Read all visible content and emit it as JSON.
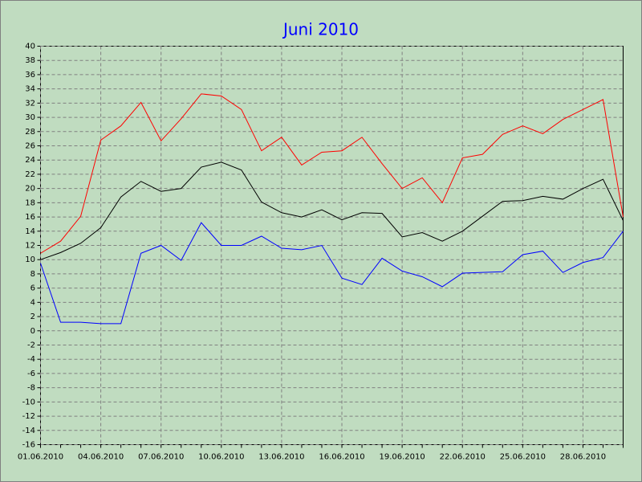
{
  "chart_data": {
    "type": "line",
    "title": "Juni 2010",
    "categories": [
      "01.06.2010",
      null,
      null,
      "04.06.2010",
      null,
      null,
      "07.06.2010",
      null,
      null,
      "10.06.2010",
      null,
      null,
      "13.06.2010",
      null,
      null,
      "16.06.2010",
      null,
      null,
      "19.06.2010",
      null,
      null,
      "22.06.2010",
      null,
      null,
      "25.06.2010",
      null,
      null,
      "28.06.2010",
      null,
      null
    ],
    "series": [
      {
        "color": "#ff0000",
        "values": [
          10.9,
          12.6,
          16.1,
          26.8,
          28.8,
          32.1,
          26.7,
          29.8,
          33.3,
          33.0,
          31.1,
          25.3,
          27.2,
          23.3,
          25.1,
          25.3,
          27.2,
          23.5,
          20.0,
          21.5,
          18.0,
          24.3,
          24.8,
          27.6,
          28.8,
          27.7,
          29.7,
          31.1,
          32.5,
          16.0
        ]
      },
      {
        "color": "#000000",
        "values": [
          10.0,
          11.0,
          12.3,
          14.5,
          18.8,
          21.0,
          19.6,
          20.0,
          23.0,
          23.7,
          22.6,
          18.1,
          16.6,
          16.0,
          17.0,
          15.6,
          16.6,
          16.5,
          13.2,
          13.8,
          12.6,
          14.0,
          16.1,
          18.2,
          18.3,
          18.9,
          18.5,
          20.0,
          21.3,
          15.5
        ]
      },
      {
        "color": "#0000ff",
        "values": [
          9.5,
          1.2,
          1.2,
          1.0,
          1.0,
          10.9,
          12.0,
          9.9,
          15.2,
          12.0,
          12.0,
          13.3,
          11.6,
          11.4,
          12.0,
          7.4,
          6.5,
          10.2,
          8.4,
          7.6,
          6.2,
          8.1,
          8.2,
          8.3,
          10.7,
          11.2,
          8.2,
          9.6,
          10.3,
          14.0
        ]
      }
    ],
    "ylim": [
      -16,
      40
    ],
    "yticks": [
      40,
      38,
      36,
      34,
      32,
      30,
      28,
      26,
      24,
      22,
      20,
      18,
      16,
      14,
      12,
      10,
      8,
      6,
      4,
      2,
      0,
      -2,
      -4,
      -6,
      -8,
      -10,
      -12,
      -14,
      -16
    ],
    "grid": true
  }
}
